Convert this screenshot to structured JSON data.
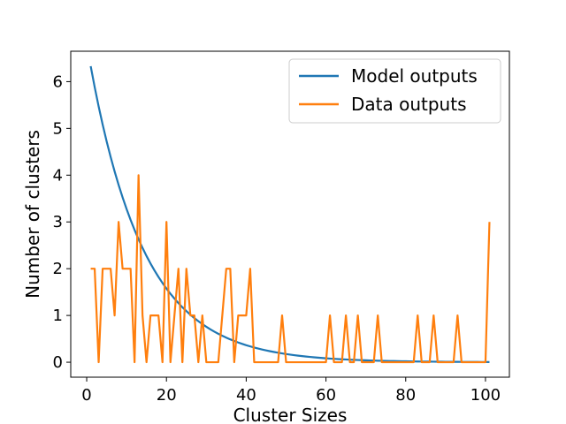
{
  "chart_data": {
    "type": "line",
    "title": "",
    "xlabel": "Cluster Sizes",
    "ylabel": "Number of clusters",
    "xlim": [
      -4,
      106
    ],
    "ylim": [
      -0.32,
      6.65
    ],
    "xticks": [
      0,
      20,
      40,
      60,
      80,
      100
    ],
    "yticks": [
      0,
      1,
      2,
      3,
      4,
      5,
      6
    ],
    "grid": false,
    "legend_position": "top-right",
    "series": [
      {
        "name": "Model outputs",
        "color": "#1f77b4",
        "style": "exponential-decay",
        "x": [
          1,
          3,
          5,
          7,
          9,
          11,
          13,
          15,
          17,
          19,
          21,
          23,
          25,
          27,
          29,
          31,
          33,
          35,
          37,
          39,
          41,
          43,
          45,
          47,
          49,
          51,
          55,
          60,
          65,
          70,
          75,
          80,
          85,
          90,
          95,
          101
        ],
        "values": [
          6.33,
          5.48,
          4.74,
          4.1,
          3.54,
          3.07,
          2.65,
          2.29,
          1.98,
          1.72,
          1.48,
          1.28,
          1.11,
          0.96,
          0.83,
          0.72,
          0.62,
          0.54,
          0.47,
          0.4,
          0.35,
          0.3,
          0.26,
          0.23,
          0.2,
          0.17,
          0.13,
          0.09,
          0.06,
          0.04,
          0.03,
          0.02,
          0.01,
          0.01,
          0.01,
          0.0
        ]
      },
      {
        "name": "Data outputs",
        "color": "#ff7f0e",
        "x": [
          1,
          2,
          3,
          4,
          5,
          6,
          7,
          8,
          9,
          10,
          11,
          12,
          13,
          14,
          15,
          16,
          17,
          18,
          19,
          20,
          21,
          22,
          23,
          24,
          25,
          26,
          27,
          28,
          29,
          30,
          31,
          32,
          33,
          34,
          35,
          36,
          37,
          38,
          39,
          40,
          41,
          42,
          43,
          44,
          45,
          46,
          47,
          48,
          49,
          50,
          60,
          61,
          62,
          63,
          64,
          65,
          66,
          67,
          68,
          69,
          70,
          72,
          73,
          74,
          80,
          82,
          83,
          84,
          86,
          87,
          88,
          92,
          93,
          94,
          100,
          101
        ],
        "values": [
          2,
          2,
          0,
          2,
          2,
          2,
          1,
          3,
          2,
          2,
          2,
          0,
          4,
          1,
          0,
          1,
          1,
          1,
          0,
          3,
          0,
          1,
          2,
          0,
          2,
          1,
          1,
          0,
          1,
          0,
          0,
          0,
          0,
          1,
          2,
          2,
          0,
          1,
          1,
          1,
          2,
          0,
          0,
          0,
          0,
          0,
          0,
          0,
          1,
          0,
          0,
          1,
          0,
          0,
          0,
          1,
          0,
          0,
          1,
          0,
          0,
          0,
          1,
          0,
          0,
          0,
          1,
          0,
          0,
          1,
          0,
          0,
          1,
          0,
          0,
          3
        ]
      }
    ]
  }
}
